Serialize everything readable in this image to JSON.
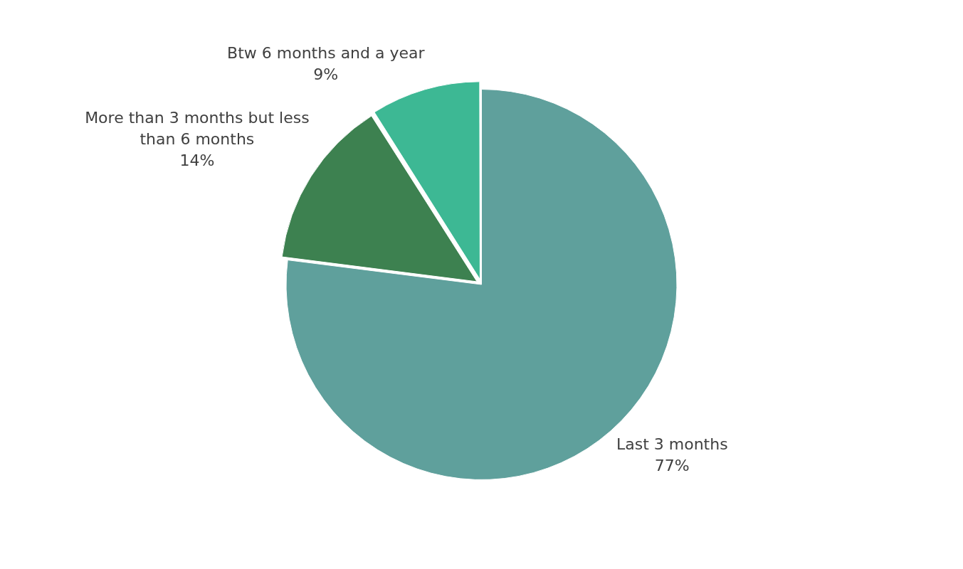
{
  "chart_data": {
    "type": "pie",
    "categories": [
      "Last 3 months",
      "More than 3 months but less than 6 months",
      "Btw 6 months and a year"
    ],
    "values": [
      77,
      14,
      9
    ],
    "colors": [
      "#5fa09c",
      "#3d8150",
      "#3db894"
    ],
    "value_labels": [
      "77%",
      "14%",
      "9%"
    ],
    "legend": false
  }
}
